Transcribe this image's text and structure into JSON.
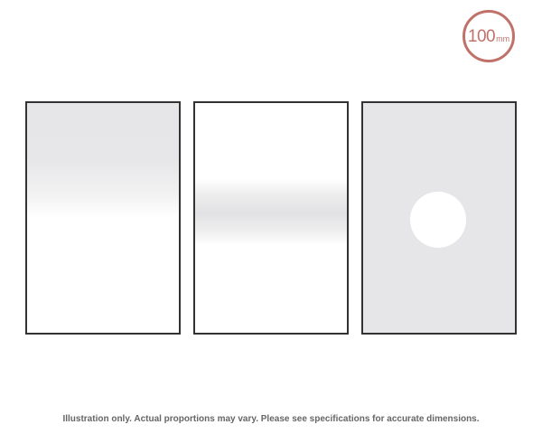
{
  "badge": {
    "number": "100",
    "unit": "mm",
    "color": "#c0726a"
  },
  "filters": [
    {
      "kind": "soft-edge-graduated"
    },
    {
      "kind": "reverse-graduated"
    },
    {
      "kind": "center-spot"
    }
  ],
  "disclaimer": "Illustration only. Actual proportions may vary. Please see specifications for accurate dimensions."
}
